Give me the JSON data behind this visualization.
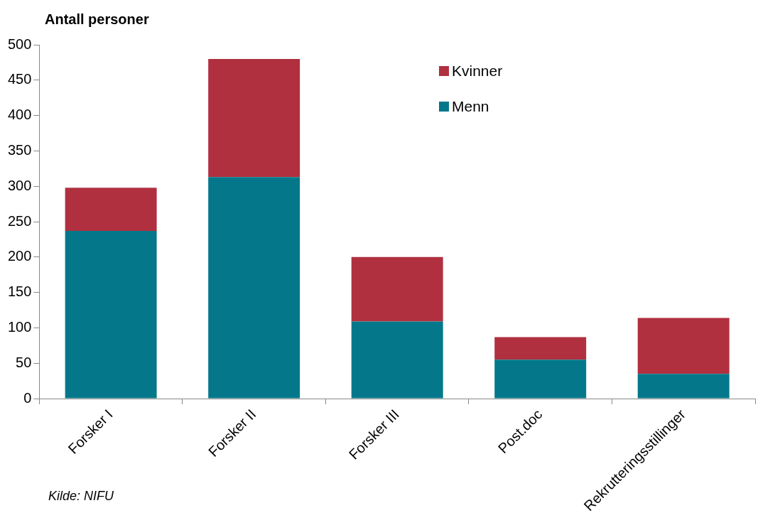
{
  "chart_data": {
    "type": "bar",
    "ylabel": "Antall personer",
    "categories": [
      "Forsker I",
      "Forsker II",
      "Forsker III",
      "Post.doc",
      "Rekrutteringsstillinger"
    ],
    "series": [
      {
        "name": "Menn",
        "color": "#04788a",
        "values": [
          237,
          313,
          109,
          55,
          35
        ]
      },
      {
        "name": "Kvinner",
        "color": "#b03040",
        "values": [
          61,
          167,
          91,
          32,
          79
        ]
      }
    ],
    "stacked": true,
    "ylim": [
      0,
      500
    ],
    "yticks": [
      0,
      50,
      100,
      150,
      200,
      250,
      300,
      350,
      400,
      450,
      500
    ],
    "grid": false,
    "legend": "top right",
    "annotations": [
      "Kilde: NIFU"
    ]
  }
}
